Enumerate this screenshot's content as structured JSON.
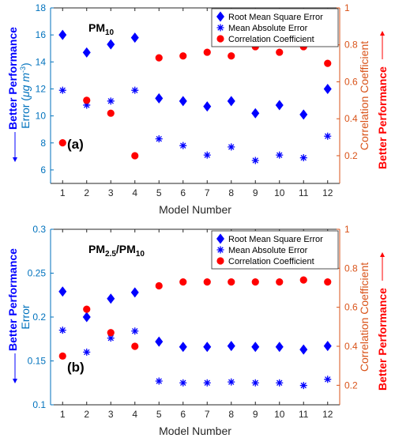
{
  "colors": {
    "left_axis": "#0072bd",
    "right_axis": "#d95319",
    "rmse": "#0000ff",
    "mae": "#0000ff",
    "corr": "#ff0000",
    "perf_left": "#0000ff",
    "perf_right": "#ff0000"
  },
  "chart_data": [
    {
      "type": "scatter",
      "panel_label": "(a)",
      "title_main": "PM",
      "title_sub": "10",
      "xlabel": "Model Number",
      "ylabel_left_prefix": "Error (",
      "ylabel_left_unit": "μg m",
      "ylabel_left_sup": "-3",
      "ylabel_left_suffix": ")",
      "ylabel_right": "Correlation Coefficient",
      "performance_left": "Better Performance",
      "performance_right": "Better Performance",
      "x": [
        1,
        2,
        3,
        4,
        5,
        6,
        7,
        8,
        9,
        10,
        11,
        12
      ],
      "xticks": [
        "1",
        "2",
        "3",
        "4",
        "5",
        "6",
        "7",
        "8",
        "9",
        "10",
        "11",
        "12"
      ],
      "xlim": [
        0.5,
        12.5
      ],
      "ylim_left": [
        5,
        18
      ],
      "yticks_left": [
        "6",
        "8",
        "10",
        "12",
        "14",
        "16",
        "18"
      ],
      "ylim_right": [
        0.05,
        1.0
      ],
      "yticks_right": [
        "0.2",
        "0.4",
        "0.6",
        "0.8",
        "1"
      ],
      "legend_position": "top-right",
      "series": [
        {
          "name": "Root Mean Square Error",
          "marker": "diamond",
          "axis": "left",
          "values": [
            16.0,
            14.7,
            15.3,
            15.8,
            11.3,
            11.1,
            10.7,
            11.1,
            10.2,
            10.8,
            10.1,
            12.0
          ]
        },
        {
          "name": "Mean Absolute Error",
          "marker": "asterisk",
          "axis": "left",
          "values": [
            11.9,
            10.8,
            11.1,
            11.9,
            8.3,
            7.8,
            7.1,
            7.7,
            6.7,
            7.1,
            6.9,
            8.5
          ]
        },
        {
          "name": "Correlation Coefficient",
          "marker": "circle",
          "axis": "right",
          "values": [
            0.27,
            0.5,
            0.43,
            0.2,
            0.73,
            0.74,
            0.76,
            0.74,
            0.79,
            0.76,
            0.79,
            0.7
          ]
        }
      ]
    },
    {
      "type": "scatter",
      "panel_label": "(b)",
      "title_main": "PM",
      "title_sub": "2.5",
      "title_sep": "/PM",
      "title_sub2": "10",
      "xlabel": "Model Number",
      "ylabel_left": "Error",
      "ylabel_right": "Correlation Coefficient",
      "performance_left": "Better Performance",
      "performance_right": "Better Performance",
      "x": [
        1,
        2,
        3,
        4,
        5,
        6,
        7,
        8,
        9,
        10,
        11,
        12
      ],
      "xticks": [
        "1",
        "2",
        "3",
        "4",
        "5",
        "6",
        "7",
        "8",
        "9",
        "10",
        "11",
        "12"
      ],
      "xlim": [
        0.5,
        12.5
      ],
      "ylim_left": [
        0.1,
        0.3
      ],
      "yticks_left": [
        "0.1",
        "0.15",
        "0.2",
        "0.25",
        "0.3"
      ],
      "ylim_right": [
        0.1,
        1.0
      ],
      "yticks_right": [
        "0.2",
        "0.4",
        "0.6",
        "0.8",
        "1"
      ],
      "legend_position": "top-right",
      "series": [
        {
          "name": "Root Mean Square Error",
          "marker": "diamond",
          "axis": "left",
          "values": [
            0.229,
            0.2,
            0.221,
            0.228,
            0.172,
            0.166,
            0.166,
            0.167,
            0.166,
            0.166,
            0.163,
            0.167
          ]
        },
        {
          "name": "Mean Absolute Error",
          "marker": "asterisk",
          "axis": "left",
          "values": [
            0.185,
            0.16,
            0.176,
            0.184,
            0.127,
            0.125,
            0.125,
            0.126,
            0.125,
            0.125,
            0.122,
            0.129
          ]
        },
        {
          "name": "Correlation Coefficient",
          "marker": "circle",
          "axis": "right",
          "values": [
            0.35,
            0.59,
            0.47,
            0.4,
            0.71,
            0.73,
            0.73,
            0.73,
            0.73,
            0.73,
            0.74,
            0.73
          ]
        }
      ]
    }
  ]
}
